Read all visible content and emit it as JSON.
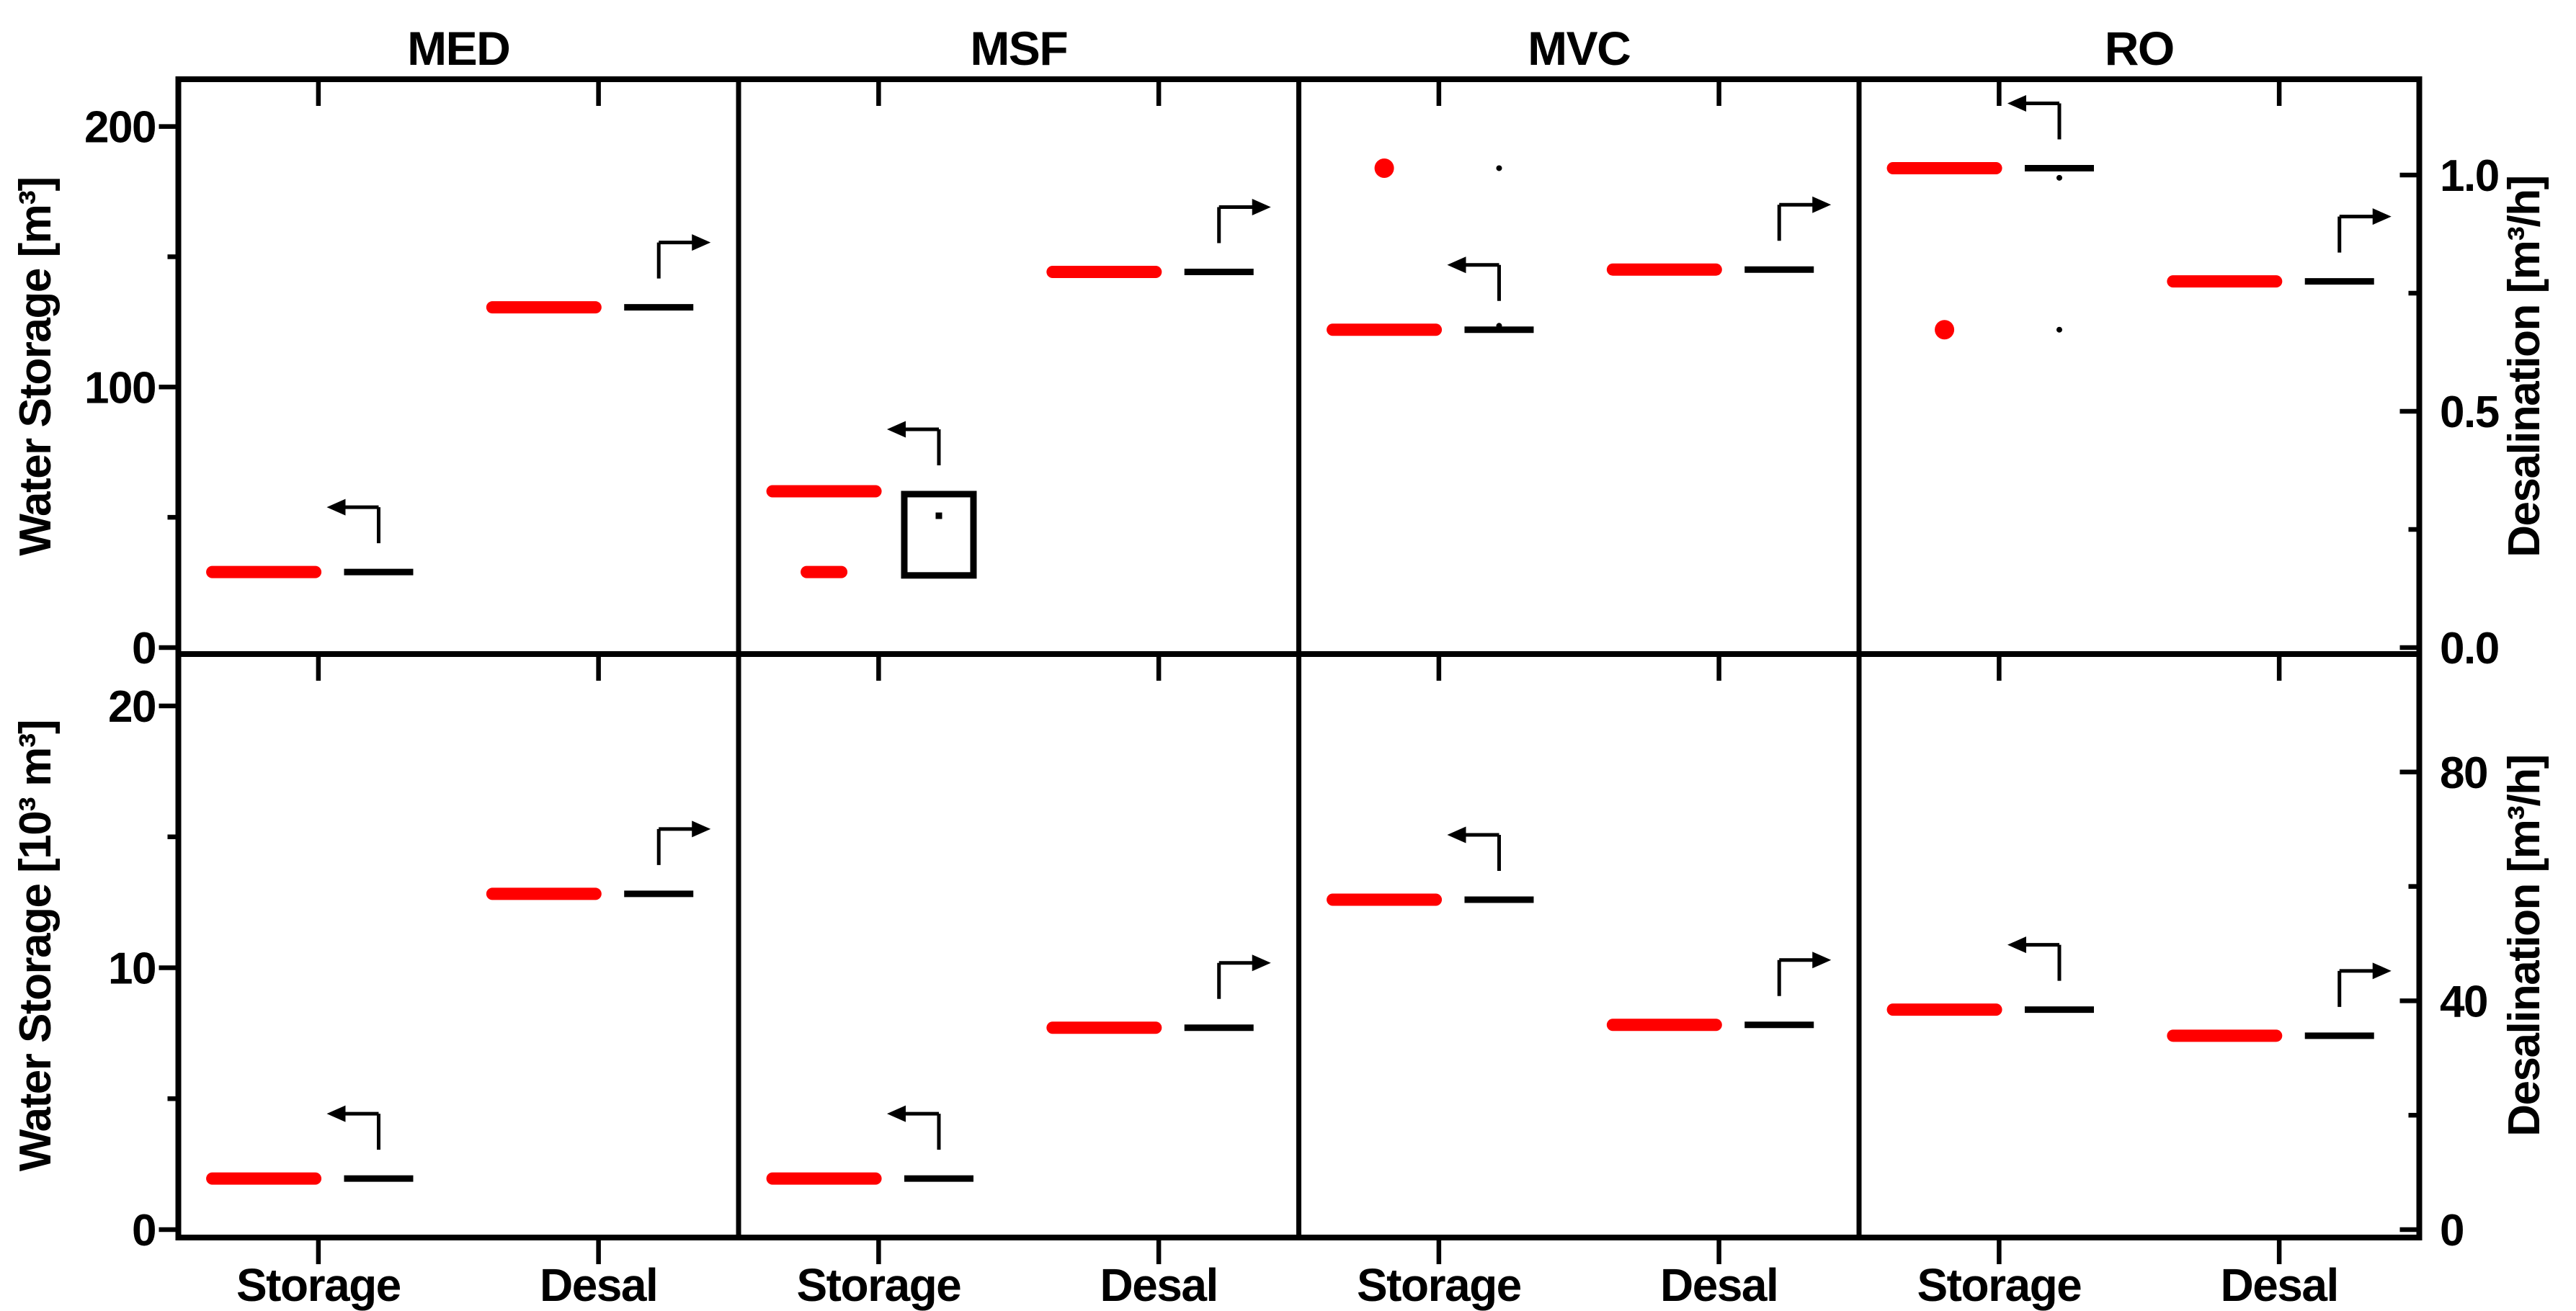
{
  "chart_data": {
    "type": "box",
    "title": "",
    "grid": false,
    "legend_position": "none",
    "layout": {
      "rows": 2,
      "cols": 4
    },
    "col_titles": [
      "MED",
      "MSF",
      "MVC",
      "RO"
    ],
    "x_categories": [
      "Storage",
      "Desal"
    ],
    "series": [
      {
        "name": "red-median",
        "color": "#ff0000",
        "marker": "thick-line"
      },
      {
        "name": "black-median",
        "color": "#000000",
        "marker": "thin-line"
      }
    ],
    "arrow_icons": {
      "storage": "bent-arrow-to-left-axis",
      "desal": "bent-arrow-to-right-axis"
    },
    "axes": {
      "top_left": {
        "label": "Water Storage [m³]",
        "major_ticks": [
          {
            "v": 0,
            "label": "0"
          },
          {
            "v": 100,
            "label": "100"
          },
          {
            "v": 200,
            "label": "200"
          }
        ],
        "minor_ticks": [
          50,
          150
        ],
        "range": [
          -3,
          218
        ]
      },
      "top_right": {
        "label": "Desalination [m³/h]",
        "major_ticks": [
          {
            "v": 0,
            "label": "0.0"
          },
          {
            "v": 0.5,
            "label": "0.5"
          },
          {
            "v": 1,
            "label": "1.0"
          }
        ],
        "minor_ticks": [
          0.25,
          0.75
        ],
        "range": [
          -0.014,
          1.203
        ]
      },
      "bottom_left": {
        "label": "Water Storage [10³ m³]",
        "major_ticks": [
          {
            "v": 0,
            "label": "0"
          },
          {
            "v": 10,
            "label": "10"
          },
          {
            "v": 20,
            "label": "20"
          }
        ],
        "minor_ticks": [
          5,
          15
        ],
        "range": [
          -0.3,
          21.93
        ]
      },
      "bottom_right": {
        "label": "Desalination [m³/h]",
        "major_ticks": [
          {
            "v": 0,
            "label": "0"
          },
          {
            "v": 40,
            "label": "40"
          },
          {
            "v": 80,
            "label": "80"
          }
        ],
        "minor_ticks": [
          20,
          60
        ],
        "range": [
          -1.39,
          100.4
        ]
      }
    },
    "panels": [
      {
        "row": 0,
        "col": 0,
        "tech": "MED",
        "storage": {
          "red_lines": [
            29
          ],
          "black_lines": [
            29
          ],
          "arrow": "left"
        },
        "desal": {
          "red_lines": [
            0.72
          ],
          "black_lines": [
            0.72
          ],
          "arrow": "right"
        }
      },
      {
        "row": 0,
        "col": 1,
        "tech": "MSF",
        "storage": {
          "red_lines": [
            60,
            {
              "v": 29,
              "short": true
            }
          ],
          "black_box": {
            "lo": 27.7,
            "hi": 58.9,
            "median": 50.6
          },
          "arrow": "left"
        },
        "desal": {
          "red_lines": [
            0.795
          ],
          "black_lines": [
            0.795
          ],
          "arrow": "right"
        }
      },
      {
        "row": 0,
        "col": 2,
        "tech": "MVC",
        "storage": {
          "red_lines": [
            122
          ],
          "black_lines": [
            122
          ],
          "red_dots": [
            184
          ],
          "black_dots": [
            184,
            123.5
          ],
          "arrow": "left"
        },
        "desal": {
          "red_lines": [
            0.8
          ],
          "black_lines": [
            0.8
          ],
          "arrow": "right"
        }
      },
      {
        "row": 0,
        "col": 3,
        "tech": "RO",
        "storage": {
          "red_lines": [
            184
          ],
          "black_lines": [
            184
          ],
          "red_dots": [
            122
          ],
          "black_dots": [
            122,
            180.3
          ],
          "arrow": "left"
        },
        "desal": {
          "red_lines": [
            0.775
          ],
          "black_lines": [
            0.775
          ],
          "arrow": "right"
        }
      },
      {
        "row": 1,
        "col": 0,
        "tech": "MED",
        "storage": {
          "red_lines": [
            1.95
          ],
          "black_lines": [
            1.95
          ],
          "arrow": "left"
        },
        "desal": {
          "red_lines": [
            58.7
          ],
          "black_lines": [
            58.7
          ],
          "arrow": "right"
        }
      },
      {
        "row": 1,
        "col": 1,
        "tech": "MSF",
        "storage": {
          "red_lines": [
            1.95
          ],
          "black_lines": [
            1.95
          ],
          "arrow": "left"
        },
        "desal": {
          "red_lines": [
            35.3
          ],
          "black_lines": [
            35.3
          ],
          "arrow": "right"
        }
      },
      {
        "row": 1,
        "col": 2,
        "tech": "MVC",
        "storage": {
          "red_lines": [
            12.6
          ],
          "black_lines": [
            12.6
          ],
          "arrow": "left"
        },
        "desal": {
          "red_lines": [
            35.8
          ],
          "black_lines": [
            35.8
          ],
          "arrow": "right"
        }
      },
      {
        "row": 1,
        "col": 3,
        "tech": "RO",
        "storage": {
          "red_lines": [
            8.4
          ],
          "black_lines": [
            8.4
          ],
          "arrow": "left"
        },
        "desal": {
          "red_lines": [
            33.9
          ],
          "black_lines": [
            33.9
          ],
          "arrow": "right"
        }
      }
    ]
  }
}
